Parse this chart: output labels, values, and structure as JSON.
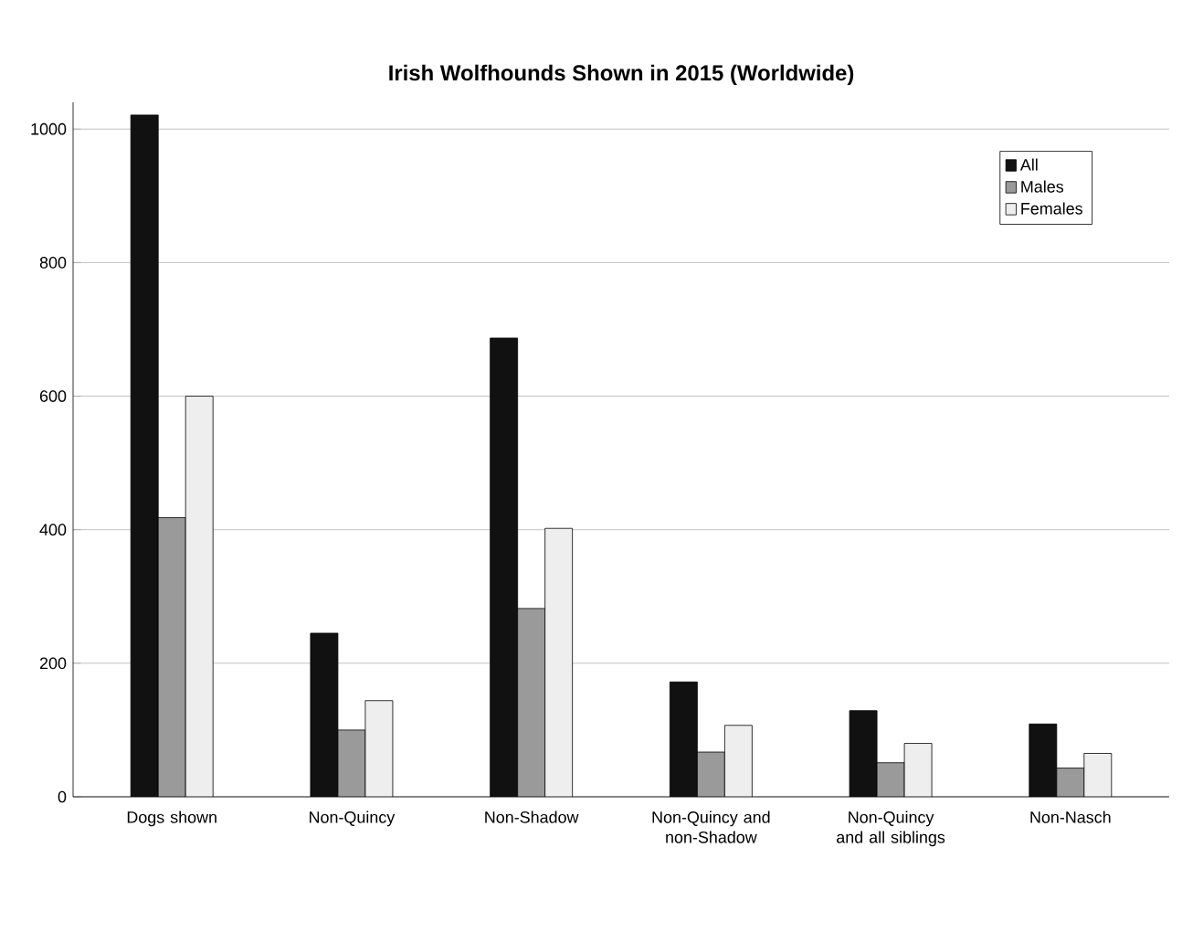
{
  "chart_data": {
    "type": "bar",
    "title": "Irish Wolfhounds Shown in 2015 (Worldwide)",
    "categories": [
      "Dogs shown",
      "Non-Quincy",
      "Non-Shadow",
      "Non-Quincy and non-Shadow",
      "Non-Quincy and all siblings",
      "Non-Nasch"
    ],
    "series": [
      {
        "name": "All",
        "color": "#111111",
        "values": [
          1021,
          245,
          687,
          172,
          129,
          109
        ]
      },
      {
        "name": "Males",
        "color": "#9a9a9a",
        "values": [
          418,
          100,
          282,
          67,
          51,
          43
        ]
      },
      {
        "name": "Females",
        "color": "#eeeeee",
        "values": [
          600,
          144,
          402,
          107,
          80,
          65
        ]
      }
    ],
    "ylim": [
      0,
      1040
    ],
    "yticks": [
      0,
      200,
      400,
      600,
      800,
      1000
    ],
    "grid": "y",
    "legend": "top right"
  }
}
